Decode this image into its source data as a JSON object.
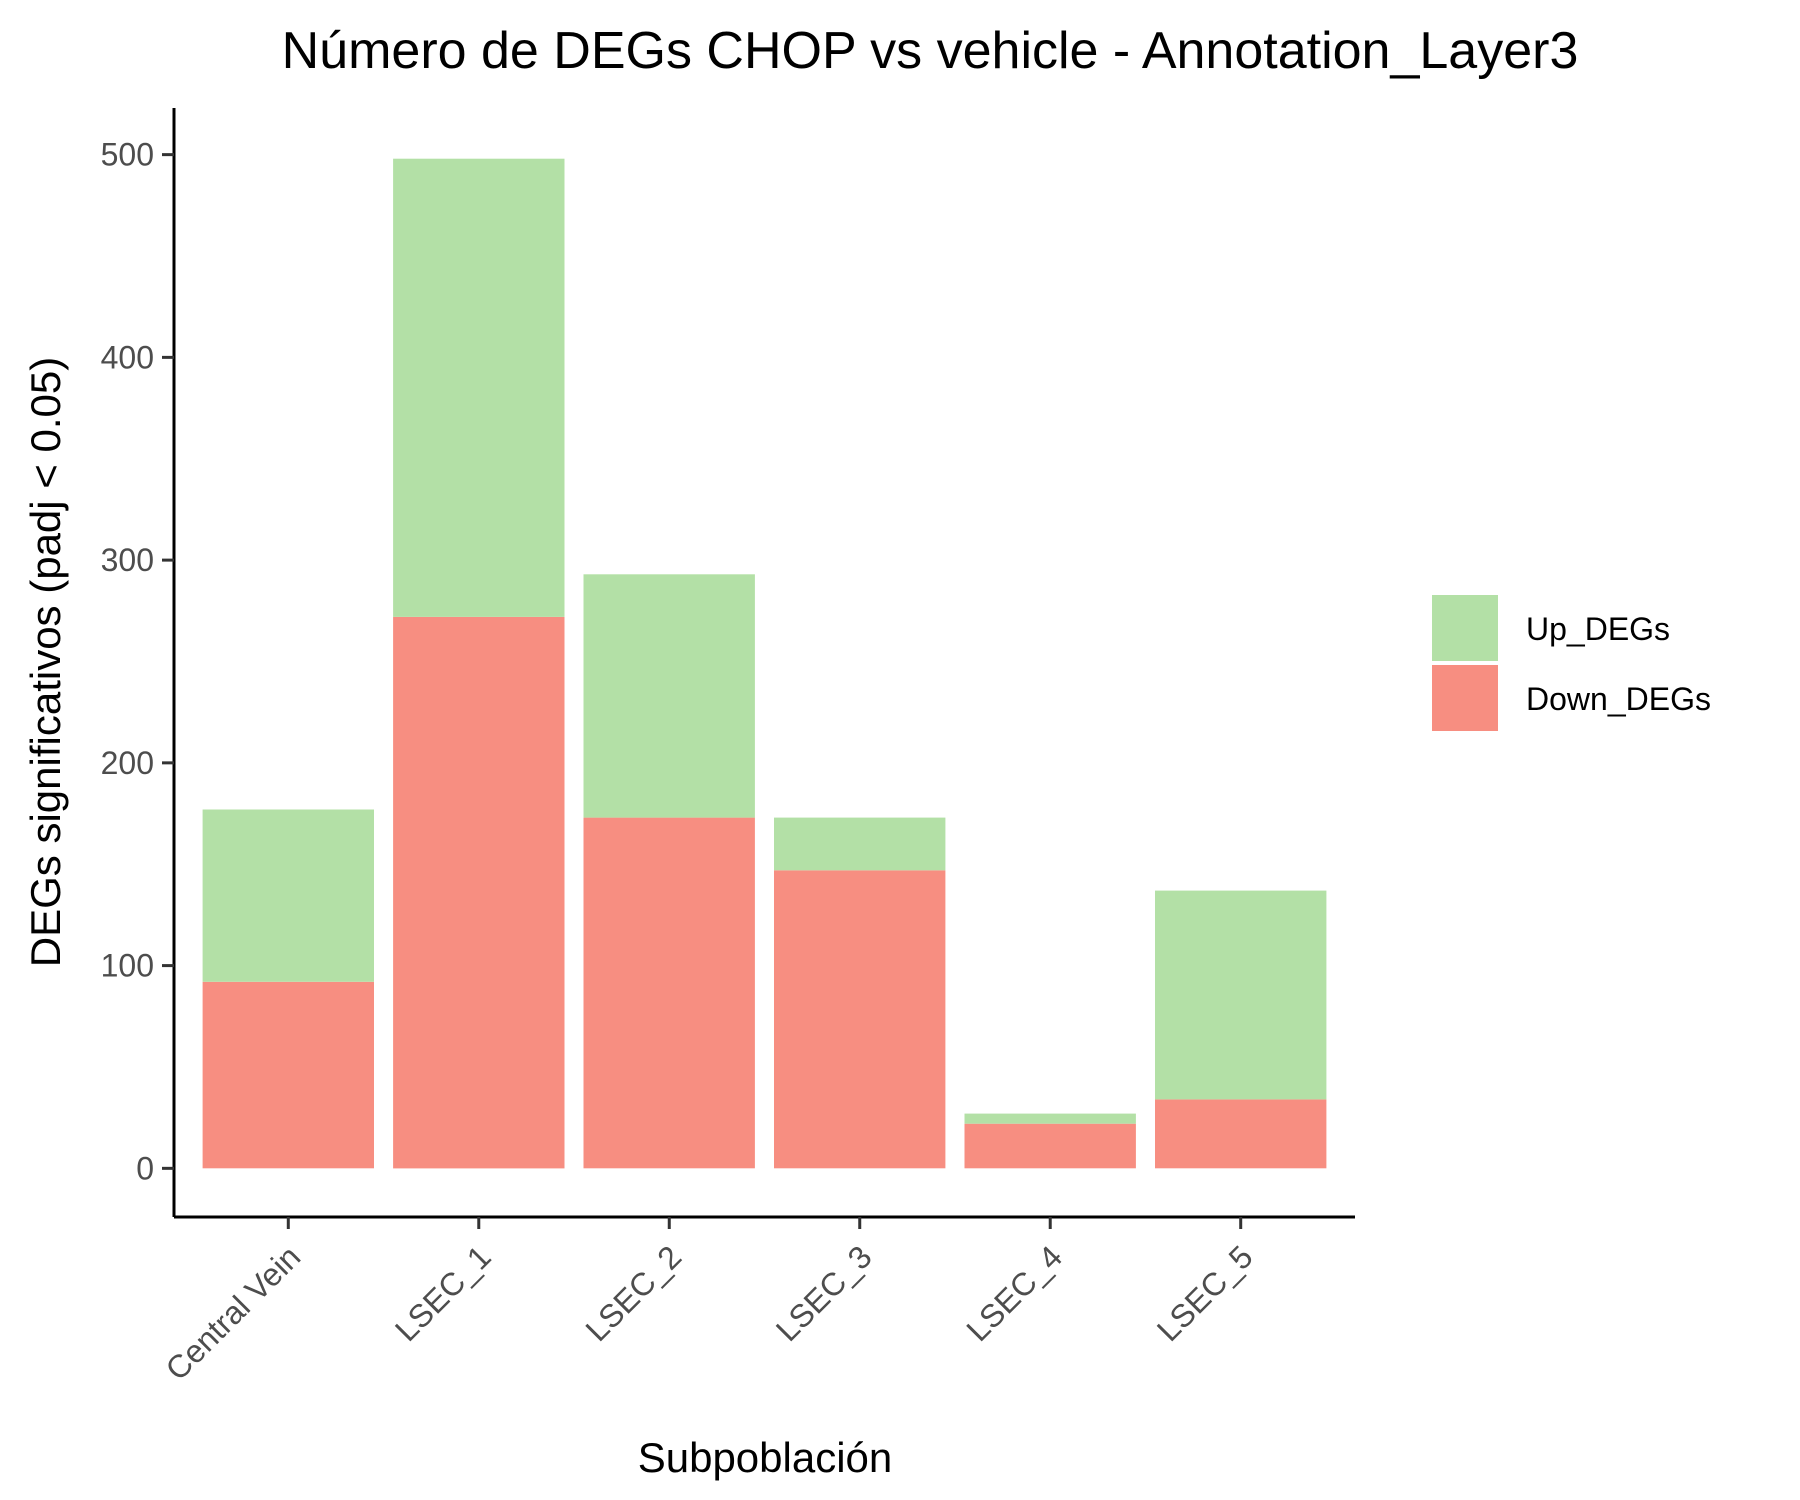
{
  "chart_data": {
    "type": "bar",
    "stacked": true,
    "title": "Número de DEGs CHOP vs vehicle - Annotation_Layer3",
    "xlabel": "Subpoblación",
    "ylabel": "DEGs significativos (padj < 0.05)",
    "categories": [
      "Central Vein",
      "LSEC_1",
      "LSEC_2",
      "LSEC_3",
      "LSEC_4",
      "LSEC_5"
    ],
    "series": [
      {
        "name": "Down_DEGs",
        "color": "#f78e81",
        "values": [
          92,
          272,
          173,
          147,
          22,
          34
        ]
      },
      {
        "name": "Up_DEGs",
        "color": "#b3e0a6",
        "values": [
          85,
          226,
          120,
          26,
          5,
          103
        ]
      }
    ],
    "legend": {
      "position": "right",
      "order": [
        "Up_DEGs",
        "Down_DEGs"
      ]
    },
    "ylim": [
      -24,
      523
    ],
    "yticks": [
      "0",
      "100",
      "200",
      "300",
      "400",
      "500"
    ],
    "grid": false
  }
}
